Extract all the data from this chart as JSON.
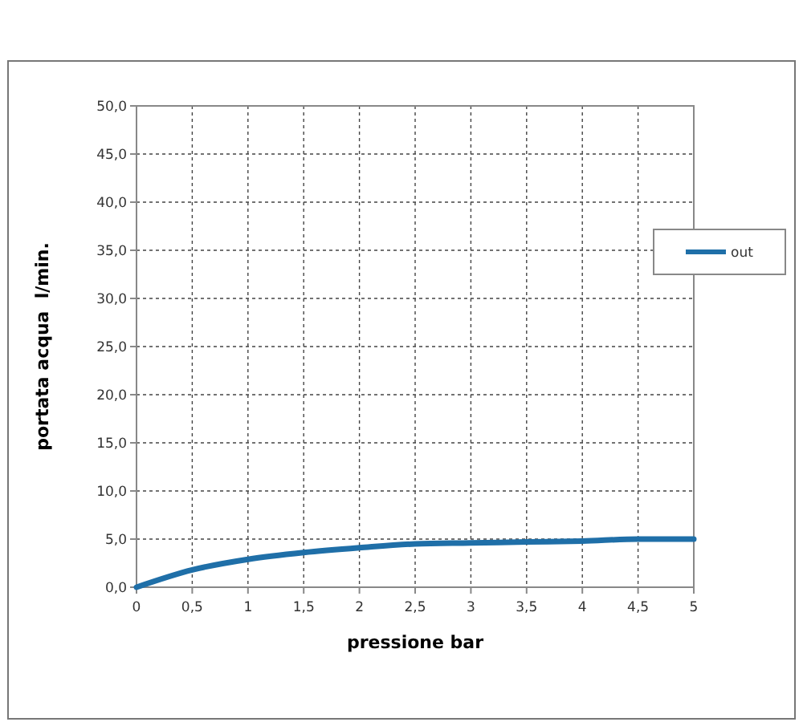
{
  "chart_data": {
    "type": "line",
    "xlabel": "pressione bar",
    "ylabel": "portata acqua  l/min.",
    "x": [
      0,
      0.5,
      1,
      1.5,
      2,
      2.5,
      3,
      3.5,
      4,
      4.5,
      5
    ],
    "series": [
      {
        "name": "out",
        "color": "#1f6fa8",
        "values": [
          0,
          1.8,
          2.9,
          3.6,
          4.1,
          4.5,
          4.6,
          4.7,
          4.8,
          5.0,
          5.0
        ]
      }
    ],
    "xlim": [
      0,
      5
    ],
    "xticks": [
      0,
      {
        "value": 0.5,
        "label": "0,5"
      },
      1,
      {
        "value": 1.5,
        "label": "1,5"
      },
      2,
      {
        "value": 2.5,
        "label": "2,5"
      },
      3,
      {
        "value": 3.5,
        "label": "3,5"
      },
      4,
      {
        "value": 4.5,
        "label": "4,5"
      },
      5
    ],
    "ylim": [
      0,
      50
    ],
    "yticks": [
      {
        "value": 0,
        "label": "0,0"
      },
      {
        "value": 5,
        "label": "5,0"
      },
      {
        "value": 10,
        "label": "10,0"
      },
      {
        "value": 15,
        "label": "15,0"
      },
      {
        "value": 20,
        "label": "20,0"
      },
      {
        "value": 25,
        "label": "25,0"
      },
      {
        "value": 30,
        "label": "30,0"
      },
      {
        "value": 35,
        "label": "35,0"
      },
      {
        "value": 40,
        "label": "40,0"
      },
      {
        "value": 45,
        "label": "45,0"
      },
      {
        "value": 50,
        "label": "50,0"
      }
    ],
    "grid": true,
    "legend": "right",
    "marker": "none",
    "line_style": "solid"
  }
}
